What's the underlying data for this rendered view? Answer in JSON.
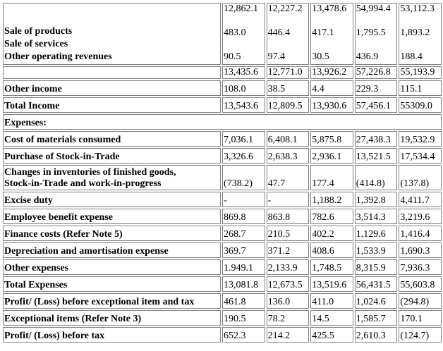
{
  "top_block": {
    "labels": [
      "Sale of products",
      "Sale of services",
      "Other operating revenues"
    ],
    "columns": [
      {
        "a": "12,862.1",
        "b": "483.0",
        "c": "90.5"
      },
      {
        "a": "12,227.2",
        "b": "446.4",
        "c": "97.4"
      },
      {
        "a": "13,478.6",
        "b": "417.1",
        "c": "30.5"
      },
      {
        "a": "54,994.4",
        "b": "1,795.5",
        "c": "436.9"
      },
      {
        "a": "53,112.3",
        "b": "1,893.2",
        "c": "188.4"
      }
    ]
  },
  "subtotal_row": {
    "label": "",
    "values": [
      "13,435.6",
      "12,771.0",
      "13,926.2",
      "57,226.8",
      "55,193.9"
    ]
  },
  "rows": [
    {
      "label": "Other income",
      "values": [
        "108.0",
        "38.5",
        "4.4",
        "229.3",
        "115.1"
      ]
    },
    {
      "label": "Total Income",
      "values": [
        "13,543.6",
        "12,809.5",
        "13,930.6",
        "57,456.1",
        "55309.0"
      ]
    }
  ],
  "expenses_header": "Expenses:",
  "expense_rows": [
    {
      "label": "Cost of materials consumed",
      "values": [
        "7,036.1",
        "6,408.1",
        "5,875.8",
        "27,438.3",
        "19,532.9"
      ]
    },
    {
      "label": "Purchase of Stock-in-Trade",
      "values": [
        "3,326.6",
        "2,638.3",
        "2,936.1",
        "13,521.5",
        "17,534.4"
      ]
    },
    {
      "label_line1": "Changes in inventories of finished goods,",
      "label_line2": "Stock-in-Trade and work-in-progress",
      "values": [
        "(738.2)",
        "47.7",
        "177.4",
        "(414.8)",
        "(137.8)"
      ]
    },
    {
      "label": "Excise duty",
      "values": [
        "-",
        "-",
        "1,188.2",
        "1,392.8",
        "4,411.7"
      ]
    },
    {
      "label": "Employee benefit expense",
      "values": [
        "869.8",
        "863.8",
        "782.6",
        "3,514.3",
        "3,219.6"
      ]
    },
    {
      "label": "Finance costs (Refer Note 5)",
      "values": [
        "268.7",
        "210.5",
        "402.2",
        "1,129.6",
        "1,416.4"
      ]
    },
    {
      "label": "Depreciation and amortisation expense",
      "values": [
        "369.7",
        "371.2",
        "408.6",
        "1,533.9",
        "1,690.3"
      ]
    },
    {
      "label": "Other expenses",
      "values": [
        "1.949.1",
        "2,133.9",
        "1,748.5",
        "8,315.9",
        "7,936.3"
      ]
    },
    {
      "label": "Total Expenses",
      "values": [
        "13,081.8",
        "12,673.5",
        "13,519.6",
        "56,431.5",
        "55,603.8"
      ]
    },
    {
      "label": "Profit/ (Loss) before exceptional item and tax",
      "values": [
        "461.8",
        "136.0",
        "411.0",
        "1,024.6",
        "(294.8)"
      ]
    },
    {
      "label": "Exceptional items (Refer Note 3)",
      "values": [
        "190.5",
        "78.2",
        "14.5",
        "1,585.7",
        "170.1"
      ]
    },
    {
      "label": "Profit/ (Loss) before tax",
      "values": [
        "652.3",
        "214.2",
        "425.5",
        "2,610.3",
        "(124.7)"
      ]
    }
  ]
}
